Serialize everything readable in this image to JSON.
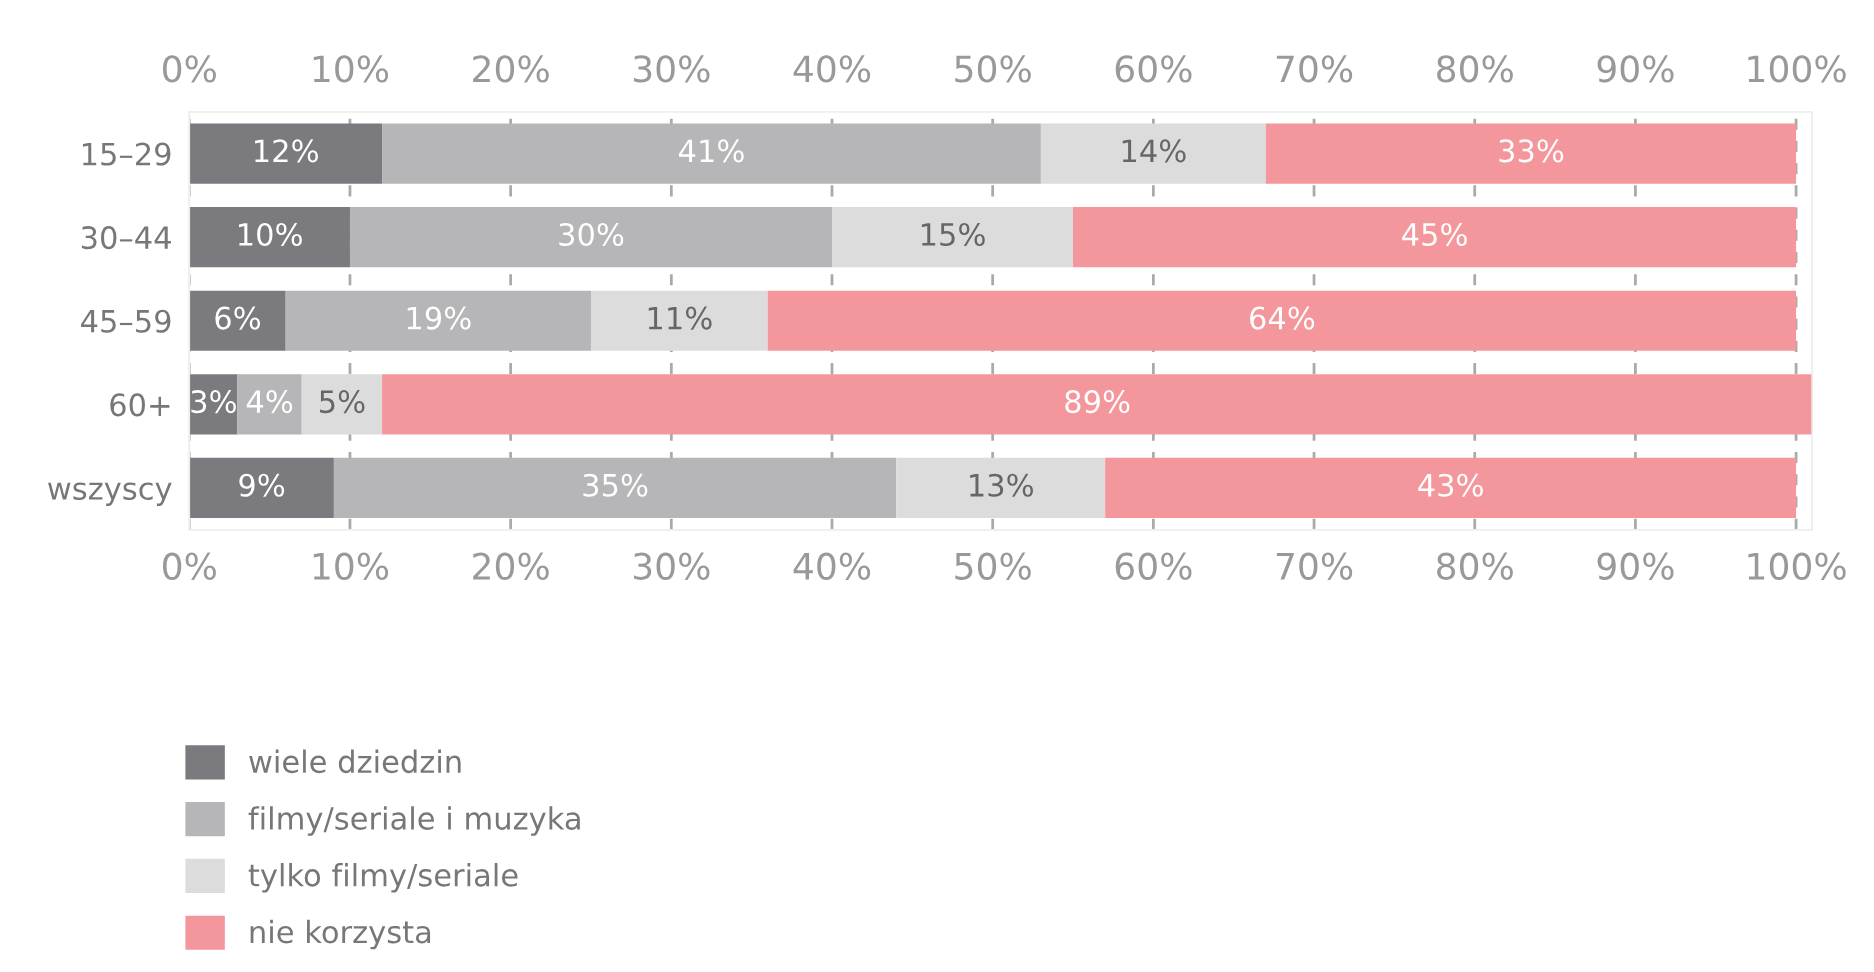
{
  "chart_data": {
    "type": "bar",
    "orientation": "horizontal",
    "stacked": true,
    "categories": [
      "15–29",
      "30–44",
      "45–59",
      "60+",
      "wszyscy"
    ],
    "series": [
      {
        "name": "wiele dziedzin",
        "color": "#7b7b7f",
        "values": [
          12,
          10,
          6,
          3,
          9
        ],
        "value_labels": [
          "12%",
          "10%",
          "6%",
          "3%",
          "9%"
        ]
      },
      {
        "name": "filmy/seriale i muzyka",
        "color": "#b6b6b8",
        "values": [
          41,
          30,
          19,
          4,
          35
        ],
        "value_labels": [
          "41%",
          "30%",
          "19%",
          "4%",
          "35%"
        ]
      },
      {
        "name": "tylko filmy/seriale",
        "color": "#dcdcdd",
        "values": [
          14,
          15,
          11,
          5,
          13
        ],
        "value_labels": [
          "14%",
          "15%",
          "11%",
          "5%",
          "13%"
        ]
      },
      {
        "name": "nie korzysta",
        "color": "#f4979d",
        "values": [
          33,
          45,
          64,
          89,
          43
        ],
        "value_labels": [
          "33%",
          "45%",
          "64%",
          "89%",
          "43%"
        ]
      }
    ],
    "xlim": [
      0,
      101
    ],
    "xticks": [
      {
        "value": 0,
        "label": "0%"
      },
      {
        "value": 10,
        "label": "10%"
      },
      {
        "value": 20,
        "label": "20%"
      },
      {
        "value": 30,
        "label": "30%"
      },
      {
        "value": 40,
        "label": "40%"
      },
      {
        "value": 50,
        "label": "50%"
      },
      {
        "value": 60,
        "label": "60%"
      },
      {
        "value": 70,
        "label": "70%"
      },
      {
        "value": 80,
        "label": "80%"
      },
      {
        "value": 90,
        "label": "90%"
      },
      {
        "value": 100,
        "label": "100%"
      }
    ],
    "x2lim": [
      0,
      101
    ],
    "x2ticks": [
      {
        "value": 0,
        "label": "0%"
      },
      {
        "value": 10,
        "label": "10%"
      },
      {
        "value": 20,
        "label": "20%"
      },
      {
        "value": 30,
        "label": "30%"
      },
      {
        "value": 40,
        "label": "40%"
      },
      {
        "value": 50,
        "label": "50%"
      },
      {
        "value": 60,
        "label": "60%"
      },
      {
        "value": 70,
        "label": "70%"
      },
      {
        "value": 80,
        "label": "80%"
      },
      {
        "value": 90,
        "label": "90%"
      },
      {
        "value": 100,
        "label": "100%"
      }
    ],
    "grid": "x",
    "legend": "bottom left"
  }
}
